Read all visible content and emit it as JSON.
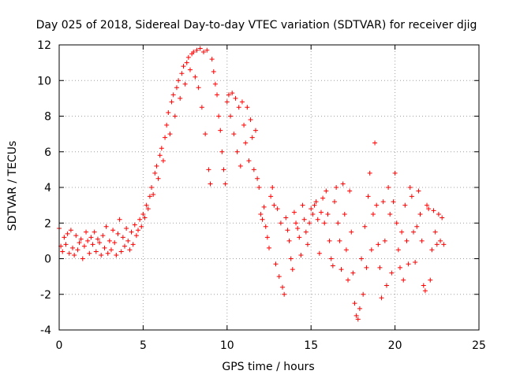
{
  "chart_data": {
    "type": "scatter",
    "title": "Day 025 of 2018, Sidereal Day-to-day VTEC variation (SDTVAR) for receiver djig",
    "xlabel": "GPS time / hours",
    "ylabel": "SDTVAR / TECUs",
    "xlim": [
      0,
      25
    ],
    "ylim": [
      -4,
      12
    ],
    "xticks": [
      0,
      5,
      10,
      15,
      20,
      25
    ],
    "yticks": [
      -4,
      -2,
      0,
      2,
      4,
      6,
      8,
      10,
      12
    ],
    "grid": true,
    "marker": "+",
    "color": "#ff0000",
    "series": [
      {
        "values_desc": "points",
        "points": [
          [
            0.0,
            1.7
          ],
          [
            0.1,
            0.7
          ],
          [
            0.2,
            0.4
          ],
          [
            0.3,
            1.2
          ],
          [
            0.4,
            0.8
          ],
          [
            0.5,
            1.4
          ],
          [
            0.6,
            0.3
          ],
          [
            0.7,
            1.6
          ],
          [
            0.8,
            0.6
          ],
          [
            0.9,
            0.2
          ],
          [
            1.0,
            1.3
          ],
          [
            1.1,
            0.5
          ],
          [
            1.2,
            0.9
          ],
          [
            1.3,
            1.1
          ],
          [
            1.4,
            0.0
          ],
          [
            1.5,
            0.7
          ],
          [
            1.6,
            1.5
          ],
          [
            1.7,
            1.0
          ],
          [
            1.8,
            0.3
          ],
          [
            1.9,
            1.2
          ],
          [
            2.0,
            0.8
          ],
          [
            2.1,
            1.5
          ],
          [
            2.2,
            0.4
          ],
          [
            2.3,
            1.1
          ],
          [
            2.4,
            0.9
          ],
          [
            2.5,
            0.2
          ],
          [
            2.6,
            1.3
          ],
          [
            2.7,
            0.6
          ],
          [
            2.8,
            1.8
          ],
          [
            2.9,
            0.3
          ],
          [
            3.0,
            1.0
          ],
          [
            3.1,
            0.5
          ],
          [
            3.2,
            1.6
          ],
          [
            3.3,
            0.9
          ],
          [
            3.4,
            0.2
          ],
          [
            3.5,
            1.4
          ],
          [
            3.6,
            2.2
          ],
          [
            3.7,
            0.4
          ],
          [
            3.8,
            1.2
          ],
          [
            3.9,
            0.7
          ],
          [
            4.0,
            1.7
          ],
          [
            4.1,
            1.0
          ],
          [
            4.2,
            0.5
          ],
          [
            4.3,
            1.5
          ],
          [
            4.4,
            0.8
          ],
          [
            4.5,
            1.9
          ],
          [
            4.6,
            1.3
          ],
          [
            4.7,
            1.6
          ],
          [
            4.8,
            2.2
          ],
          [
            4.9,
            1.8
          ],
          [
            5.0,
            2.5
          ],
          [
            5.1,
            2.3
          ],
          [
            5.2,
            3.0
          ],
          [
            5.3,
            2.8
          ],
          [
            5.4,
            3.5
          ],
          [
            5.5,
            4.0
          ],
          [
            5.6,
            3.6
          ],
          [
            5.7,
            4.8
          ],
          [
            5.8,
            5.2
          ],
          [
            5.9,
            4.5
          ],
          [
            6.0,
            5.8
          ],
          [
            6.1,
            6.2
          ],
          [
            6.2,
            5.5
          ],
          [
            6.3,
            6.8
          ],
          [
            6.4,
            7.5
          ],
          [
            6.5,
            8.2
          ],
          [
            6.6,
            7.0
          ],
          [
            6.7,
            8.8
          ],
          [
            6.8,
            9.2
          ],
          [
            6.9,
            8.0
          ],
          [
            7.0,
            9.6
          ],
          [
            7.1,
            10.0
          ],
          [
            7.2,
            9.0
          ],
          [
            7.3,
            10.4
          ],
          [
            7.4,
            10.8
          ],
          [
            7.5,
            9.8
          ],
          [
            7.6,
            11.0
          ],
          [
            7.7,
            11.3
          ],
          [
            7.8,
            10.6
          ],
          [
            7.9,
            11.5
          ],
          [
            8.0,
            11.6
          ],
          [
            8.1,
            10.2
          ],
          [
            8.2,
            11.7
          ],
          [
            8.3,
            9.6
          ],
          [
            8.4,
            11.8
          ],
          [
            8.5,
            8.5
          ],
          [
            8.6,
            11.6
          ],
          [
            8.7,
            7.0
          ],
          [
            8.8,
            11.7
          ],
          [
            8.9,
            5.0
          ],
          [
            9.0,
            4.2
          ],
          [
            9.1,
            11.2
          ],
          [
            9.2,
            10.5
          ],
          [
            9.3,
            9.8
          ],
          [
            9.4,
            9.2
          ],
          [
            9.5,
            8.0
          ],
          [
            9.6,
            7.2
          ],
          [
            9.7,
            6.0
          ],
          [
            9.8,
            5.0
          ],
          [
            9.9,
            4.2
          ],
          [
            10.0,
            8.8
          ],
          [
            10.1,
            9.2
          ],
          [
            10.2,
            8.0
          ],
          [
            10.3,
            9.3
          ],
          [
            10.4,
            7.0
          ],
          [
            10.5,
            9.0
          ],
          [
            10.6,
            6.0
          ],
          [
            10.7,
            8.5
          ],
          [
            10.8,
            5.2
          ],
          [
            10.9,
            8.8
          ],
          [
            11.0,
            7.5
          ],
          [
            11.1,
            6.5
          ],
          [
            11.2,
            8.5
          ],
          [
            11.3,
            5.5
          ],
          [
            11.4,
            7.8
          ],
          [
            11.5,
            6.8
          ],
          [
            11.6,
            5.0
          ],
          [
            11.7,
            7.2
          ],
          [
            11.8,
            4.5
          ],
          [
            11.9,
            4.0
          ],
          [
            12.0,
            2.5
          ],
          [
            12.1,
            2.2
          ],
          [
            12.2,
            2.9
          ],
          [
            12.3,
            1.8
          ],
          [
            12.4,
            1.2
          ],
          [
            12.5,
            0.6
          ],
          [
            12.6,
            3.5
          ],
          [
            12.7,
            4.0
          ],
          [
            12.8,
            3.0
          ],
          [
            12.9,
            -0.3
          ],
          [
            13.0,
            2.8
          ],
          [
            13.1,
            -1.0
          ],
          [
            13.2,
            2.0
          ],
          [
            13.3,
            -1.6
          ],
          [
            13.4,
            -2.0
          ],
          [
            13.5,
            2.3
          ],
          [
            13.6,
            1.6
          ],
          [
            13.7,
            1.0
          ],
          [
            13.8,
            0.0
          ],
          [
            13.9,
            -0.6
          ],
          [
            14.0,
            2.6
          ],
          [
            14.1,
            2.0
          ],
          [
            14.2,
            1.7
          ],
          [
            14.3,
            1.2
          ],
          [
            14.4,
            0.2
          ],
          [
            14.5,
            3.0
          ],
          [
            14.6,
            2.2
          ],
          [
            14.7,
            1.5
          ],
          [
            14.8,
            0.8
          ],
          [
            14.9,
            2.0
          ],
          [
            15.0,
            2.8
          ],
          [
            15.1,
            2.5
          ],
          [
            15.2,
            3.0
          ],
          [
            15.3,
            3.2
          ],
          [
            15.4,
            2.2
          ],
          [
            15.5,
            0.3
          ],
          [
            15.6,
            2.6
          ],
          [
            15.7,
            3.4
          ],
          [
            15.8,
            2.0
          ],
          [
            15.9,
            3.8
          ],
          [
            16.0,
            2.5
          ],
          [
            16.1,
            1.0
          ],
          [
            16.2,
            0.0
          ],
          [
            16.3,
            -0.4
          ],
          [
            16.4,
            3.2
          ],
          [
            16.5,
            4.0
          ],
          [
            16.6,
            2.0
          ],
          [
            16.7,
            1.0
          ],
          [
            16.8,
            -0.6
          ],
          [
            16.9,
            4.2
          ],
          [
            17.0,
            2.5
          ],
          [
            17.1,
            0.5
          ],
          [
            17.2,
            -1.2
          ],
          [
            17.3,
            3.8
          ],
          [
            17.4,
            1.5
          ],
          [
            17.5,
            -0.8
          ],
          [
            17.6,
            -2.5
          ],
          [
            17.7,
            -3.2
          ],
          [
            17.8,
            -3.4
          ],
          [
            17.9,
            -2.8
          ],
          [
            18.0,
            0.0
          ],
          [
            18.1,
            -2.0
          ],
          [
            18.2,
            1.8
          ],
          [
            18.3,
            -0.5
          ],
          [
            18.4,
            3.5
          ],
          [
            18.5,
            4.8
          ],
          [
            18.6,
            0.5
          ],
          [
            18.7,
            2.5
          ],
          [
            18.8,
            6.5
          ],
          [
            18.9,
            3.0
          ],
          [
            19.0,
            0.8
          ],
          [
            19.1,
            -0.5
          ],
          [
            19.2,
            -2.2
          ],
          [
            19.3,
            3.2
          ],
          [
            19.4,
            1.0
          ],
          [
            19.5,
            -1.5
          ],
          [
            19.6,
            4.0
          ],
          [
            19.7,
            2.5
          ],
          [
            19.8,
            -0.8
          ],
          [
            19.9,
            3.2
          ],
          [
            20.0,
            4.8
          ],
          [
            20.1,
            2.0
          ],
          [
            20.2,
            0.5
          ],
          [
            20.3,
            -0.5
          ],
          [
            20.4,
            1.5
          ],
          [
            20.5,
            -1.2
          ],
          [
            20.6,
            3.0
          ],
          [
            20.7,
            1.0
          ],
          [
            20.8,
            -0.3
          ],
          [
            20.9,
            4.0
          ],
          [
            21.0,
            3.5
          ],
          [
            21.1,
            1.5
          ],
          [
            21.2,
            -0.2
          ],
          [
            21.3,
            1.8
          ],
          [
            21.4,
            3.8
          ],
          [
            21.5,
            2.5
          ],
          [
            21.6,
            1.0
          ],
          [
            21.7,
            -1.5
          ],
          [
            21.8,
            -1.8
          ],
          [
            21.9,
            3.0
          ],
          [
            22.0,
            2.8
          ],
          [
            22.1,
            -1.2
          ],
          [
            22.2,
            0.5
          ],
          [
            22.3,
            2.7
          ],
          [
            22.4,
            1.5
          ],
          [
            22.5,
            0.8
          ],
          [
            22.6,
            2.5
          ],
          [
            22.7,
            1.0
          ],
          [
            22.8,
            2.3
          ],
          [
            22.9,
            0.8
          ]
        ]
      }
    ]
  }
}
